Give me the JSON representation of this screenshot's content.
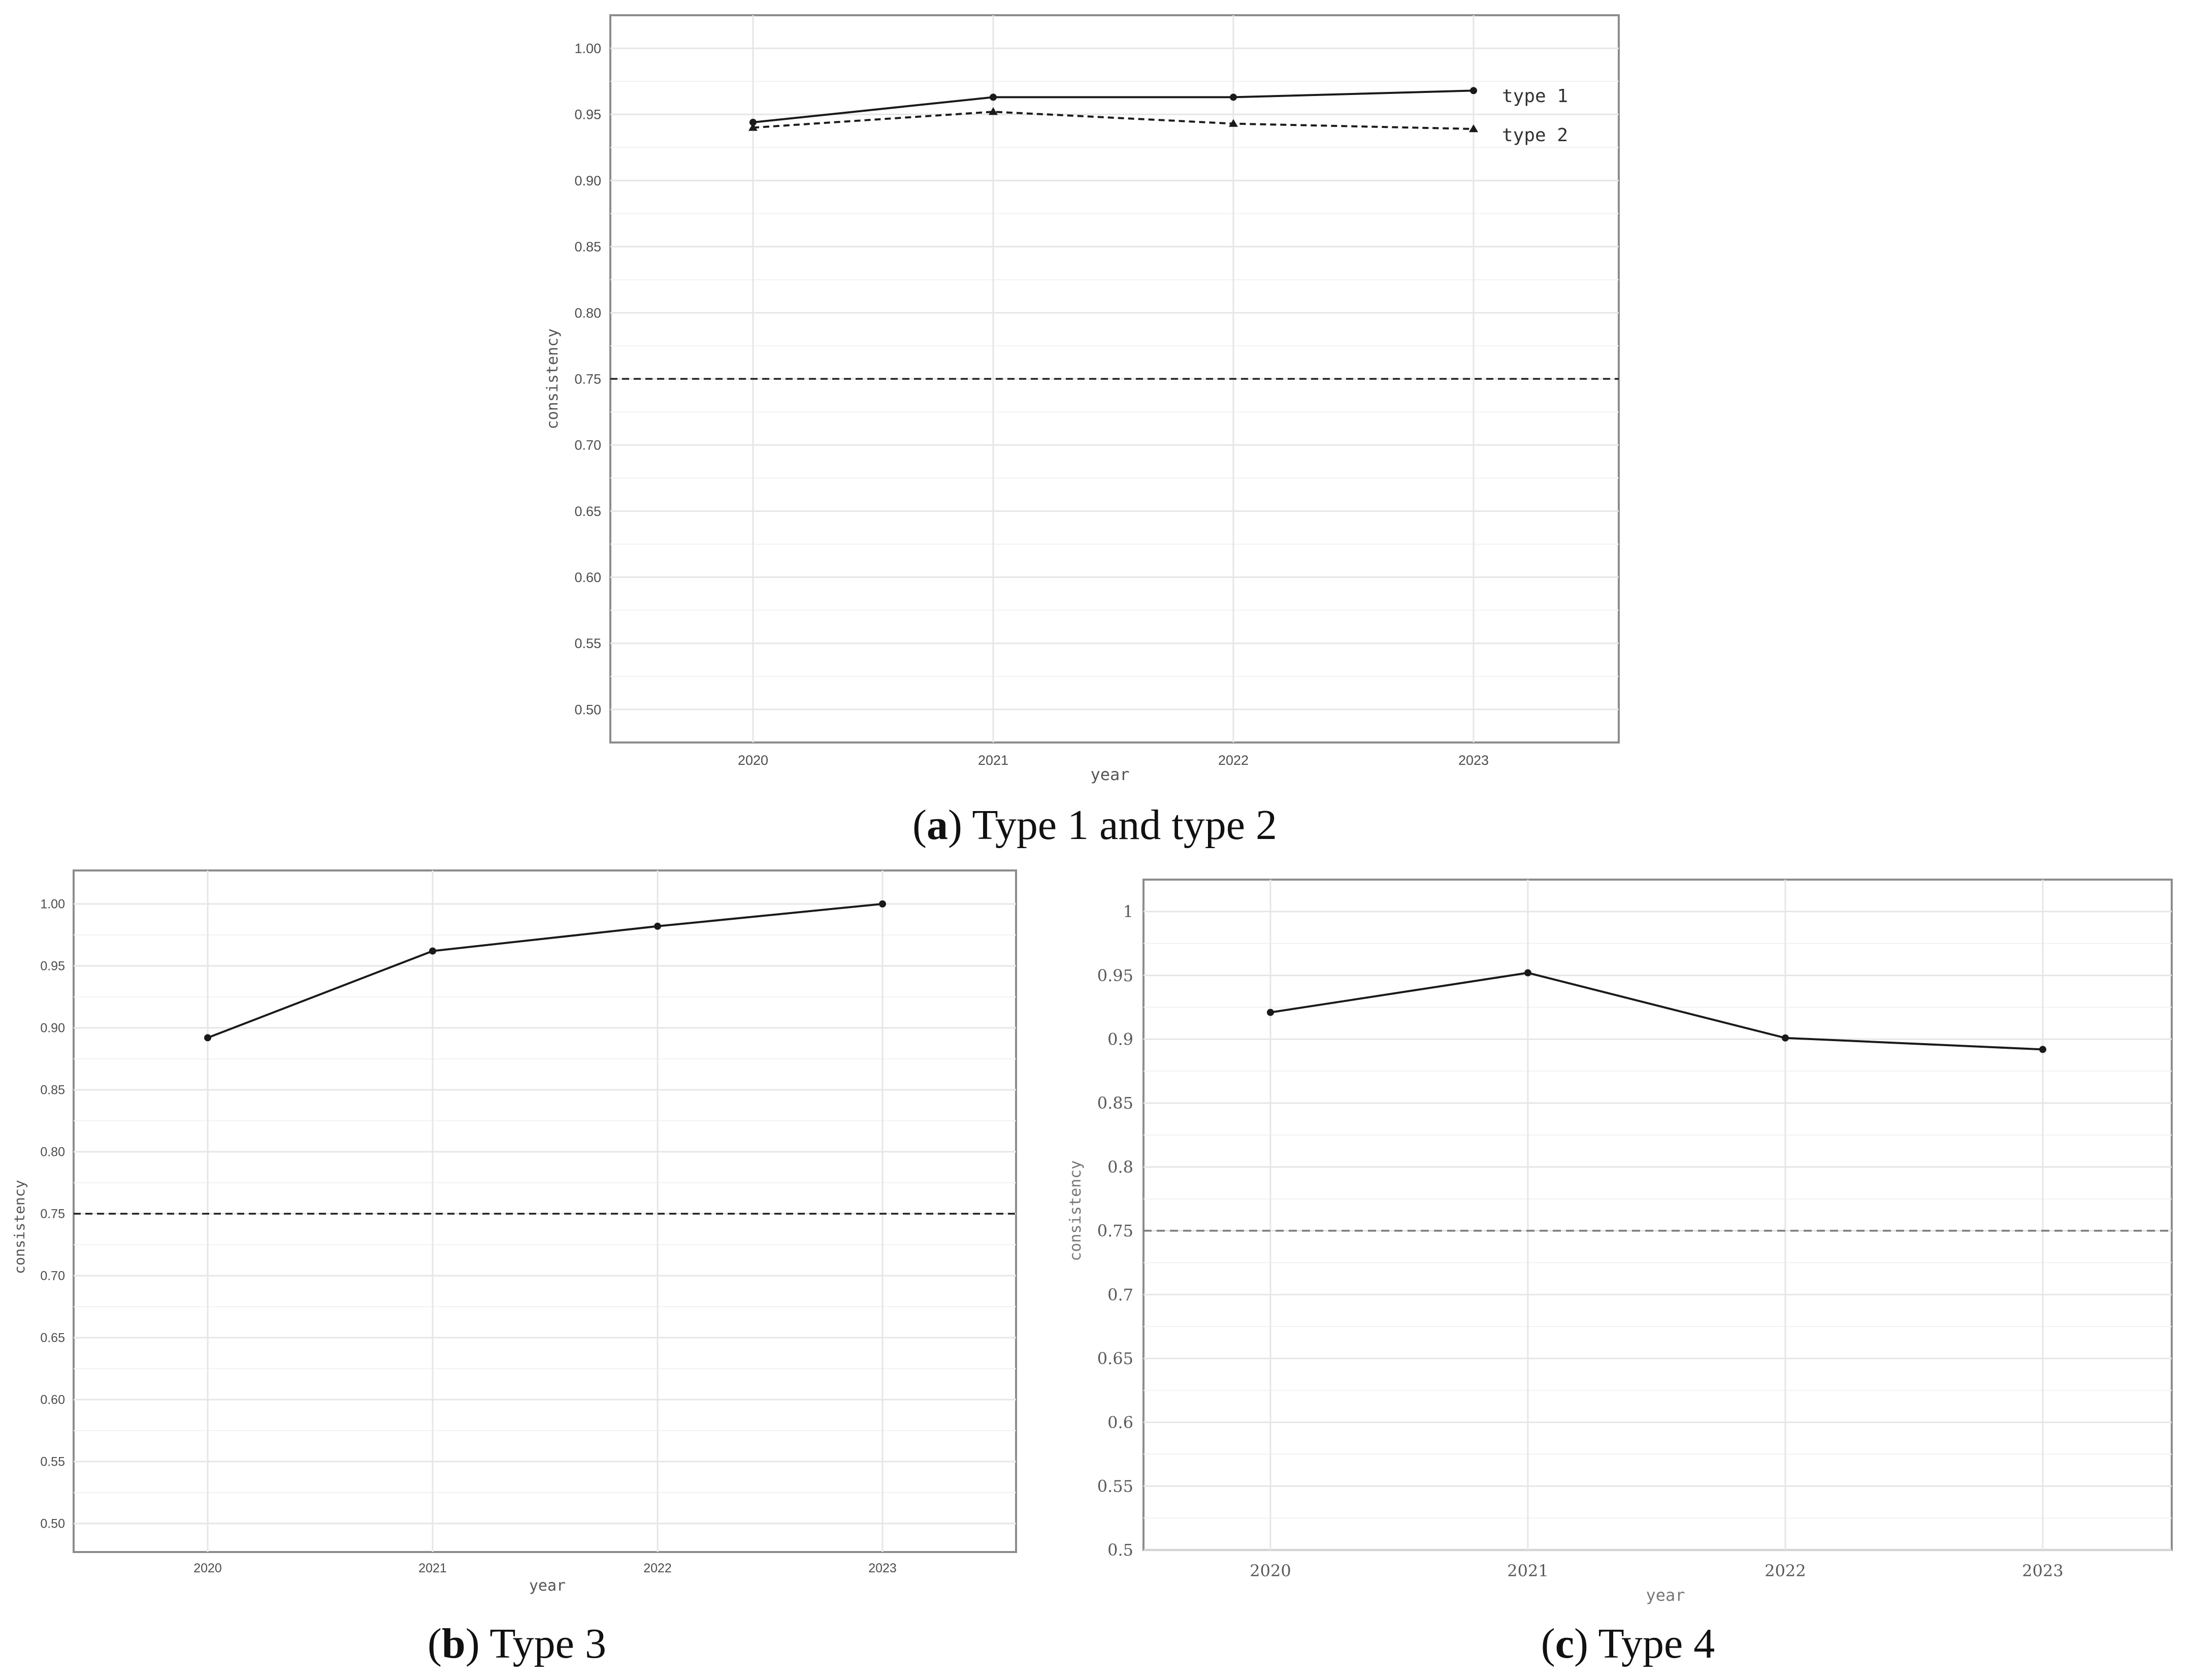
{
  "chart_data": [
    {
      "type": "line",
      "panel": "a",
      "caption": {
        "letter": "a",
        "text": "Type 1 and type 2"
      },
      "xlabel": "year",
      "ylabel": "consistency",
      "x": [
        "2020",
        "2021",
        "2022",
        "2023"
      ],
      "ylim": [
        0.475,
        1.025
      ],
      "yticks": [
        "0.50",
        "0.55",
        "0.60",
        "0.65",
        "0.70",
        "0.75",
        "0.80",
        "0.85",
        "0.90",
        "0.95",
        "1.00"
      ],
      "reference_line": 0.75,
      "grid": true,
      "series": [
        {
          "name": "type 1",
          "values": [
            0.944,
            0.963,
            0.963,
            0.968
          ],
          "marker": "circle",
          "dash": "solid"
        },
        {
          "name": "type 2",
          "values": [
            0.94,
            0.952,
            0.943,
            0.939
          ],
          "marker": "triangle",
          "dash": "dashed"
        }
      ]
    },
    {
      "type": "line",
      "panel": "b",
      "caption": {
        "letter": "b",
        "text": "Type 3"
      },
      "xlabel": "year",
      "ylabel": "consistency",
      "x": [
        "2020",
        "2021",
        "2022",
        "2023"
      ],
      "ylim": [
        0.477,
        1.027
      ],
      "yticks": [
        "0.50",
        "0.55",
        "0.60",
        "0.65",
        "0.70",
        "0.75",
        "0.80",
        "0.85",
        "0.90",
        "0.95",
        "1.00"
      ],
      "reference_line": 0.75,
      "grid": true,
      "series": [
        {
          "values": [
            0.892,
            0.962,
            0.982,
            1.0
          ],
          "marker": "circle",
          "dash": "solid"
        }
      ]
    },
    {
      "type": "line",
      "panel": "c",
      "caption": {
        "letter": "c",
        "text": "Type 4"
      },
      "xlabel": "year",
      "ylabel": "consistency",
      "x": [
        "2020",
        "2021",
        "2022",
        "2023"
      ],
      "ylim": [
        0.5,
        1.025
      ],
      "yticks": [
        "0.5",
        "0.55",
        "0.6",
        "0.65",
        "0.7",
        "0.75",
        "0.8",
        "0.85",
        "0.9",
        "0.95",
        "1"
      ],
      "reference_line": 0.75,
      "grid": true,
      "series": [
        {
          "values": [
            0.921,
            0.952,
            0.901,
            0.892
          ],
          "marker": "circle",
          "dash": "solid"
        }
      ]
    }
  ]
}
